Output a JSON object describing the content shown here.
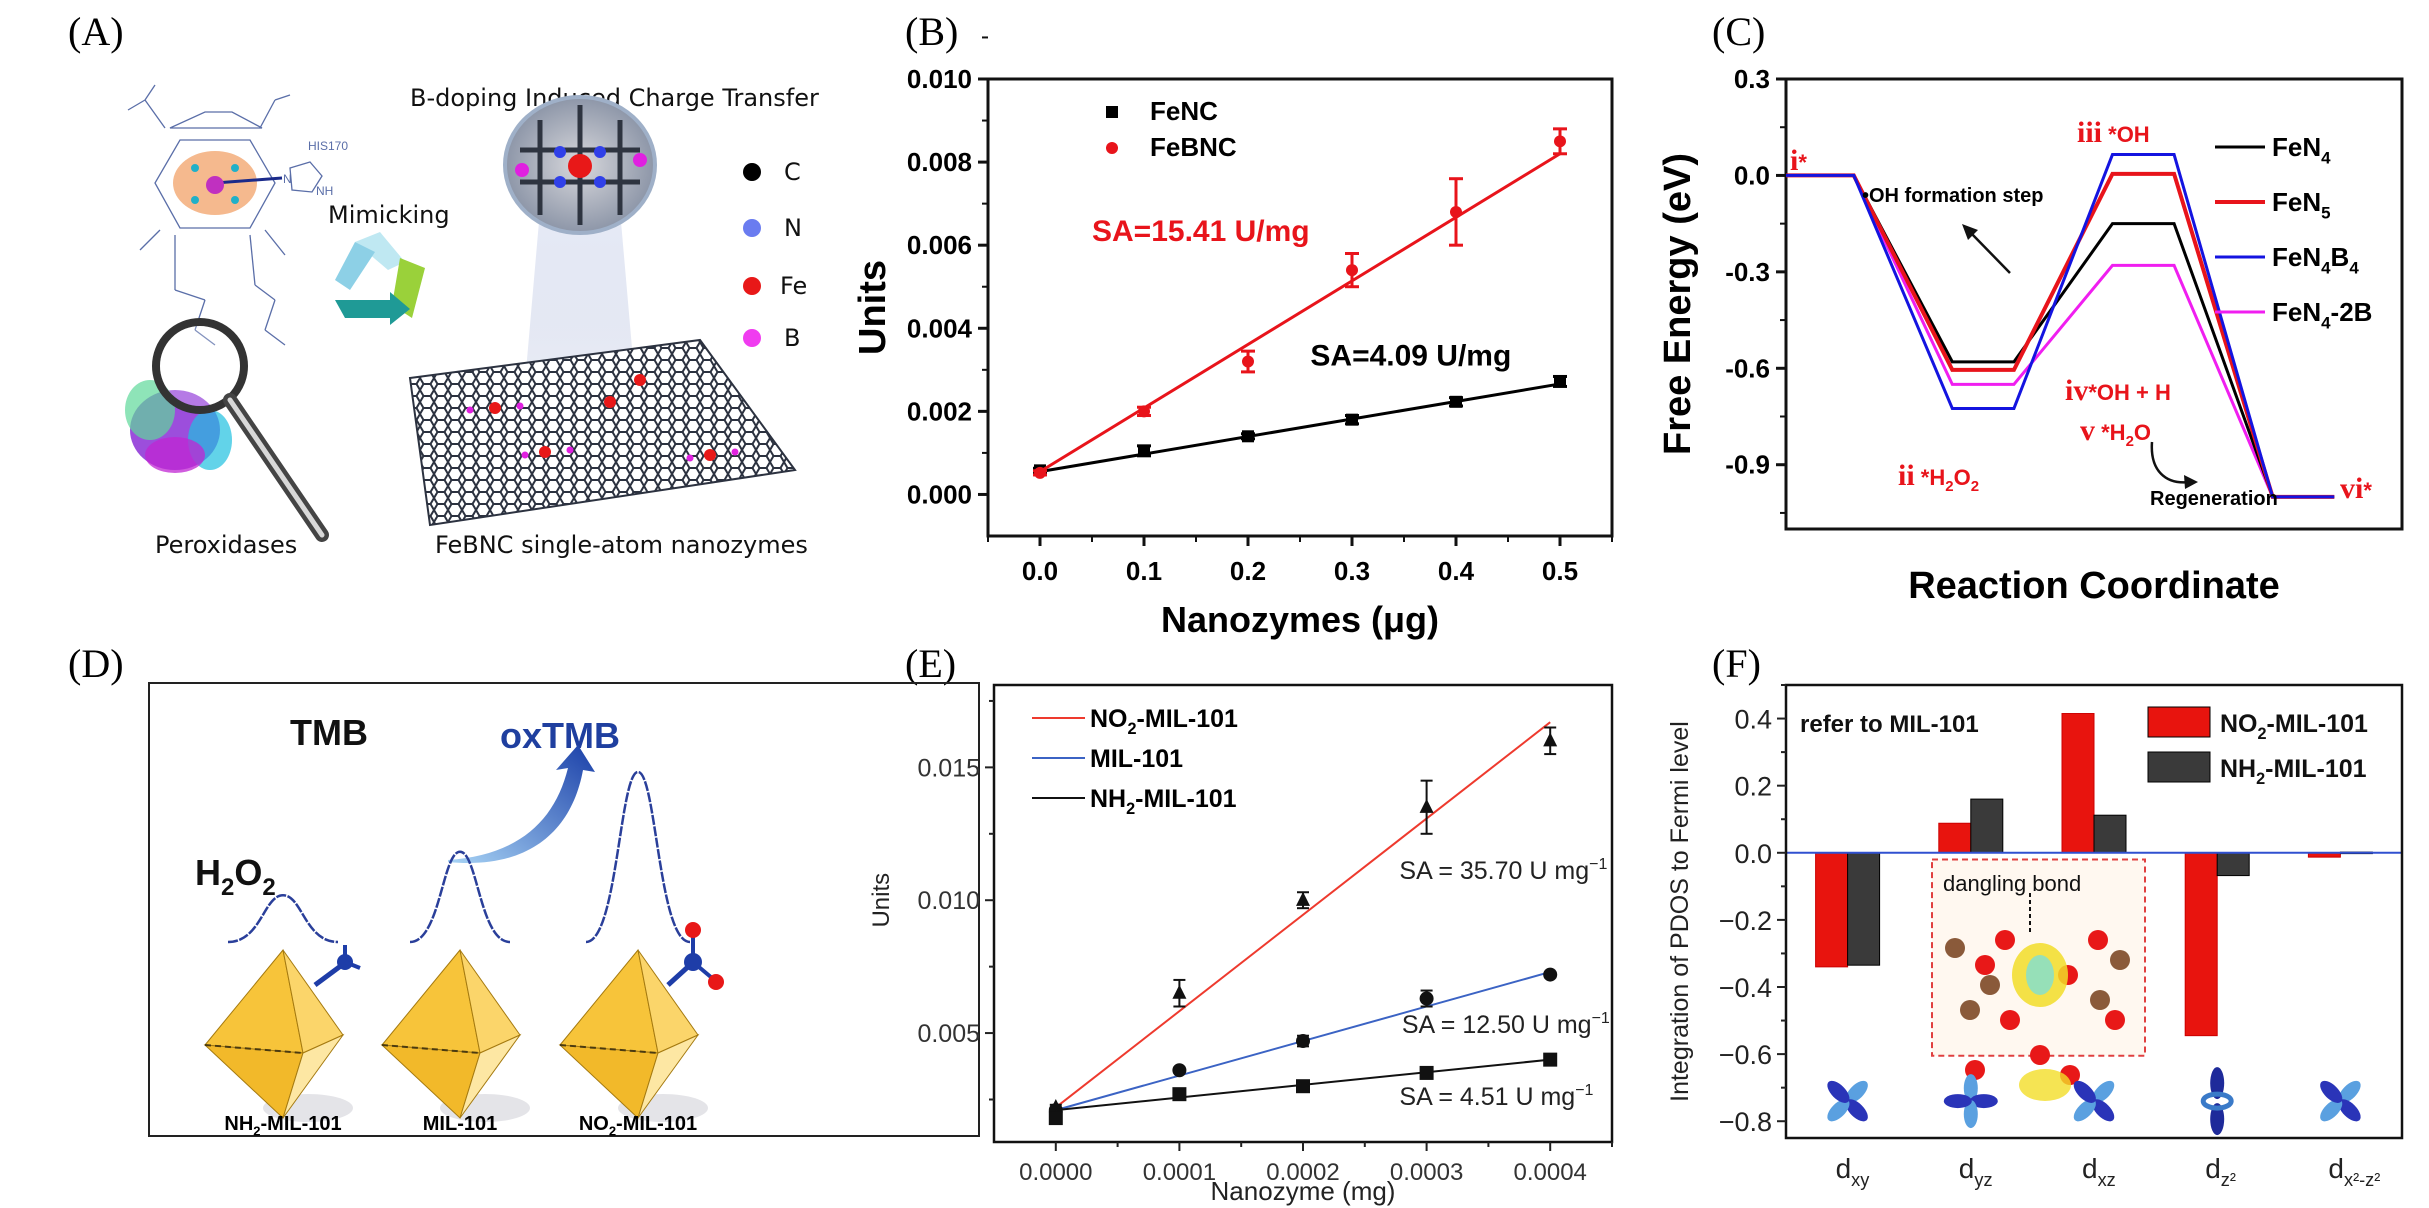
{
  "panels": {
    "A": {
      "label": "(A)",
      "title": "B-doping Induced Charge Transfer",
      "mimicking": "Mimicking",
      "his_label": "HIS170",
      "nh_label": "NH",
      "n_label": "N",
      "fe_center": "Fe",
      "peroxidases": "Peroxidases",
      "nanozymes": "FeBNC single-atom nanozymes",
      "legend": [
        {
          "label": "C",
          "color": "#000000"
        },
        {
          "label": "N",
          "color": "#6a7cf0"
        },
        {
          "label": "Fe",
          "color": "#e81818"
        },
        {
          "label": "B",
          "color": "#f03cf0"
        }
      ]
    },
    "B": {
      "label": "(B)"
    },
    "C": {
      "label": "(C)"
    },
    "D": {
      "label": "(D)",
      "tmb": "TMB",
      "oxtmb": "oxTMB",
      "h2o2": "H",
      "h2o2_sub1": "2",
      "h2o2_mid": "O",
      "h2o2_sub2": "2",
      "materials": [
        {
          "pre": "NH",
          "sub": "2",
          "post": "-MIL-101",
          "peak": 0.15
        },
        {
          "pre": "MIL-101",
          "sub": "",
          "post": "",
          "peak": 0.45
        },
        {
          "pre": "NO",
          "sub": "2",
          "post": "-MIL-101",
          "peak": 1.0
        }
      ]
    },
    "E": {
      "label": "(E)"
    },
    "F": {
      "label": "(F)",
      "inset_label": "dangling bond",
      "annotation": "refer to MIL-101"
    }
  },
  "chart_data": [
    {
      "id": "B",
      "type": "scatter",
      "xlabel": "Nanozymes (μg)",
      "ylabel": "Units",
      "xlim": [
        -0.05,
        0.55
      ],
      "ylim": [
        -0.001,
        0.01
      ],
      "xticks": [
        0.0,
        0.1,
        0.2,
        0.3,
        0.4,
        0.5
      ],
      "xtick_labels": [
        "0.0",
        "0.1",
        "0.2",
        "0.3",
        "0.4",
        "0.5"
      ],
      "yticks": [
        0.0,
        0.002,
        0.004,
        0.006,
        0.008,
        0.01
      ],
      "ytick_labels": [
        "0.000",
        "0.002",
        "0.004",
        "0.006",
        "0.008",
        "0.010"
      ],
      "legend_position": "top-left",
      "series": [
        {
          "name": "FeNC",
          "color": "#000000",
          "marker": "square",
          "x": [
            0.0,
            0.1,
            0.2,
            0.3,
            0.4,
            0.5
          ],
          "y": [
            0.00058,
            0.00105,
            0.0014,
            0.0018,
            0.00223,
            0.00272
          ],
          "err": [
            5e-05,
            0.00012,
            6e-05,
            0.0001,
            0.0001,
            0.00012
          ],
          "fit": [
            0.00055,
            0.00266
          ]
        },
        {
          "name": "FeBNC",
          "color": "#e8141b",
          "marker": "circle",
          "x": [
            0.0,
            0.1,
            0.2,
            0.3,
            0.4,
            0.5
          ],
          "y": [
            0.00052,
            0.002,
            0.0032,
            0.0054,
            0.0068,
            0.0085
          ],
          "err": [
            5e-05,
            0.0001,
            0.00025,
            0.0004,
            0.0008,
            0.0003
          ],
          "fit": [
            0.00055,
            0.0082
          ]
        }
      ],
      "annotations": [
        {
          "text": "SA=15.41 U/mg",
          "color": "#e8141b",
          "x": 0.05,
          "y": 0.0061
        },
        {
          "text": "SA=4.09 U/mg",
          "color": "#000000",
          "x": 0.26,
          "y": 0.0031
        }
      ]
    },
    {
      "id": "C",
      "type": "line",
      "xlabel": "Reaction Coordinate",
      "ylabel": "Free Energy (eV)",
      "ylim": [
        -1.1,
        0.3
      ],
      "yticks": [
        0.3,
        0.0,
        -0.3,
        -0.6,
        -0.9
      ],
      "ytick_labels": [
        "0.3",
        "0.0",
        "-0.3",
        "-0.6",
        "-0.9"
      ],
      "legend_position": "top-right",
      "steps": [
        "i*",
        "ii *H2O2",
        "iii *OH",
        "vi*"
      ],
      "series": [
        {
          "name": "FeN4",
          "name_main": "FeN",
          "name_sub": "4",
          "name_post": "",
          "name_sub2": "",
          "color": "#000000",
          "values": [
            0.0,
            -0.58,
            -0.15,
            -1.0
          ]
        },
        {
          "name": "FeN5",
          "name_main": "FeN",
          "name_sub": "5",
          "name_post": "",
          "name_sub2": "",
          "color": "#e8141b",
          "values": [
            0.0,
            -0.605,
            0.005,
            -1.0
          ]
        },
        {
          "name": "FeN4B4",
          "name_main": "FeN",
          "name_sub": "4",
          "name_post": "B",
          "name_sub2": "4",
          "color": "#1414e0",
          "values": [
            0.0,
            -0.725,
            0.065,
            -1.0
          ]
        },
        {
          "name": "FeN4-2B",
          "name_main": "FeN",
          "name_sub": "4",
          "name_post": "-2B",
          "name_sub2": "",
          "color": "#f01ef0",
          "values": [
            0.0,
            -0.65,
            -0.28,
            -1.0
          ]
        }
      ],
      "annotations": [
        {
          "roman": "i",
          "text": "*",
          "sub": "",
          "text2": ""
        },
        {
          "roman": "ii",
          "text": " *H",
          "sub": "2",
          "text2": "O",
          "sub2": "2"
        },
        {
          "roman": "iii",
          "text": " *OH",
          "sub": "",
          "text2": ""
        },
        {
          "roman": "iv",
          "text": "*OH + H",
          "sub": "",
          "text2": ""
        },
        {
          "roman": "v",
          "text": " *H",
          "sub": "2",
          "text2": "O"
        },
        {
          "roman": "vi",
          "text": "*",
          "sub": "",
          "text2": ""
        },
        {
          "plain": "•OH formation step"
        },
        {
          "plain": "Regeneration"
        }
      ]
    },
    {
      "id": "E",
      "type": "scatter",
      "xlabel": "Nanozyme (mg)",
      "ylabel": "Units",
      "xlim": [
        -5e-05,
        0.00045
      ],
      "ylim": [
        0.0009,
        0.0181
      ],
      "xticks": [
        0.0,
        0.0001,
        0.0002,
        0.0003,
        0.0004
      ],
      "xtick_labels": [
        "0.0000",
        "0.0001",
        "0.0002",
        "0.0003",
        "0.0004"
      ],
      "yticks": [
        0.005,
        0.01,
        0.015
      ],
      "ytick_labels": [
        "0.005",
        "0.010",
        "0.015"
      ],
      "legend_position": "top-left",
      "series": [
        {
          "name": "NO2-MIL-101",
          "name_main": "NO",
          "name_sub": "2",
          "name_post": "-MIL-101",
          "color": "#ee3a2e",
          "marker": "triangle",
          "x": [
            0.0,
            0.0001,
            0.0002,
            0.0003,
            0.0004
          ],
          "y": [
            0.0022,
            0.0065,
            0.01,
            0.0135,
            0.016
          ],
          "err": [
            0.0001,
            0.0005,
            0.0003,
            0.001,
            0.0005
          ],
          "fit": [
            0.0022,
            0.0167
          ]
        },
        {
          "name": "MIL-101",
          "name_main": "MIL-101",
          "name_sub": "",
          "name_post": "",
          "color": "#3b63c4",
          "marker": "circle",
          "x": [
            0.0,
            0.0001,
            0.0002,
            0.0003,
            0.0004
          ],
          "y": [
            0.0021,
            0.0036,
            0.0047,
            0.0063,
            0.0072
          ],
          "err": [
            0.0001,
            0.0001,
            0.0002,
            0.0003,
            0.0001
          ],
          "fit": [
            0.0021,
            0.0073
          ]
        },
        {
          "name": "NH2-MIL-101",
          "name_main": "NH",
          "name_sub": "2",
          "name_post": "-MIL-101",
          "color": "#111111",
          "marker": "square",
          "x": [
            0.0,
            0.0001,
            0.0002,
            0.0003,
            0.0004
          ],
          "y": [
            0.0018,
            0.0027,
            0.003,
            0.0035,
            0.004
          ],
          "err": [
            0.0002,
            0.0001,
            0.0002,
            0.0001,
            0.0001
          ],
          "fit": [
            0.0021,
            0.004
          ]
        }
      ],
      "annotations": [
        {
          "text": "SA = 35.70 U mg",
          "sup": "−1",
          "x": 0.000278,
          "y": 0.0108
        },
        {
          "text": "SA = 12.50 U mg",
          "sup": "−1",
          "x": 0.00028,
          "y": 0.005
        },
        {
          "text": "SA = 4.51 U mg",
          "sup": "−1",
          "x": 0.000278,
          "y": 0.0023
        }
      ]
    },
    {
      "id": "F",
      "type": "bar",
      "ylabel": "Integration of PDOS to Fermi level",
      "ylim": [
        -0.85,
        0.5
      ],
      "yticks": [
        0.4,
        0.2,
        0.0,
        -0.2,
        -0.4,
        -0.6,
        -0.8
      ],
      "ytick_labels": [
        "0.4",
        "0.2",
        "0.0",
        "−0.2",
        "−0.4",
        "−0.6",
        "−0.8"
      ],
      "categories": [
        "dxy",
        "dyz",
        "dxz",
        "dz2",
        "dx2-z2"
      ],
      "category_labels": [
        {
          "main": "d",
          "sub": "xy"
        },
        {
          "main": "d",
          "sub": "yz"
        },
        {
          "main": "d",
          "sub": "xz"
        },
        {
          "main": "d",
          "sub": "z²"
        },
        {
          "main": "d",
          "sub": "x²-z²"
        }
      ],
      "legend_position": "top-right",
      "series": [
        {
          "name": "NO2-MIL-101",
          "name_main": "NO",
          "name_sub": "2",
          "name_post": "-MIL-101",
          "color": "#e8140e",
          "values": [
            -0.34,
            0.088,
            0.415,
            -0.545,
            -0.013
          ]
        },
        {
          "name": "NH2-MIL-101",
          "name_main": "NH",
          "name_sub": "2",
          "name_post": "-MIL-101",
          "color": "#3a3a3a",
          "values": [
            -0.335,
            0.16,
            0.112,
            -0.068,
            0.002
          ]
        }
      ],
      "zero_line_color": "#3050d0"
    }
  ]
}
